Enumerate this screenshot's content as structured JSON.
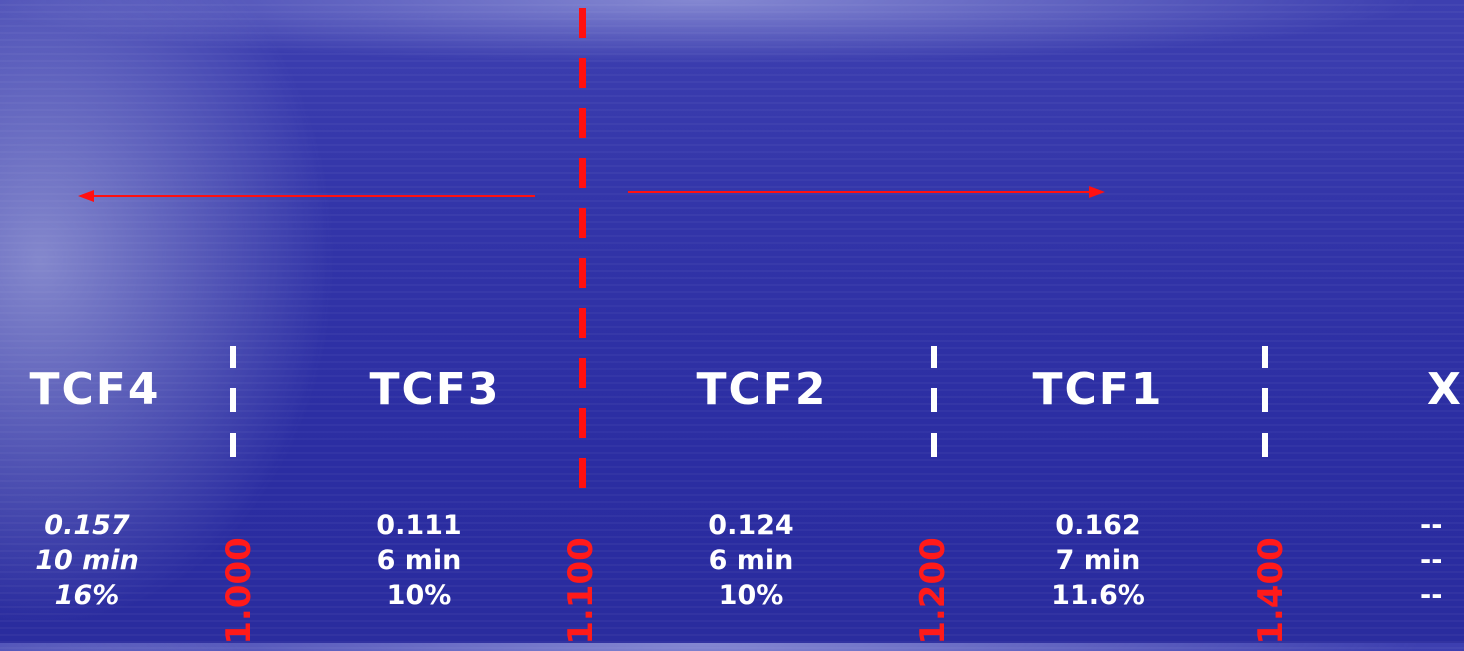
{
  "columns": [
    {
      "label": "TCF4",
      "stats": [
        "0.157",
        "10 min",
        "16%"
      ],
      "italic": true
    },
    {
      "label": "TCF3",
      "stats": [
        "0.111",
        "6 min",
        "10%"
      ],
      "italic": false
    },
    {
      "label": "TCF2",
      "stats": [
        "0.124",
        "6 min",
        "10%"
      ],
      "italic": false
    },
    {
      "label": "TCF1",
      "stats": [
        "0.162",
        "7 min",
        "11.6%"
      ],
      "italic": false
    },
    {
      "label": "X",
      "stats": [
        "--",
        "--",
        "--"
      ],
      "italic": false
    }
  ],
  "thresholds": [
    "1.000",
    "1.100",
    "1.200",
    "1.400"
  ],
  "colors": {
    "background": "#2f31a6",
    "text": "#ffffff",
    "accent": "#ff1010"
  }
}
